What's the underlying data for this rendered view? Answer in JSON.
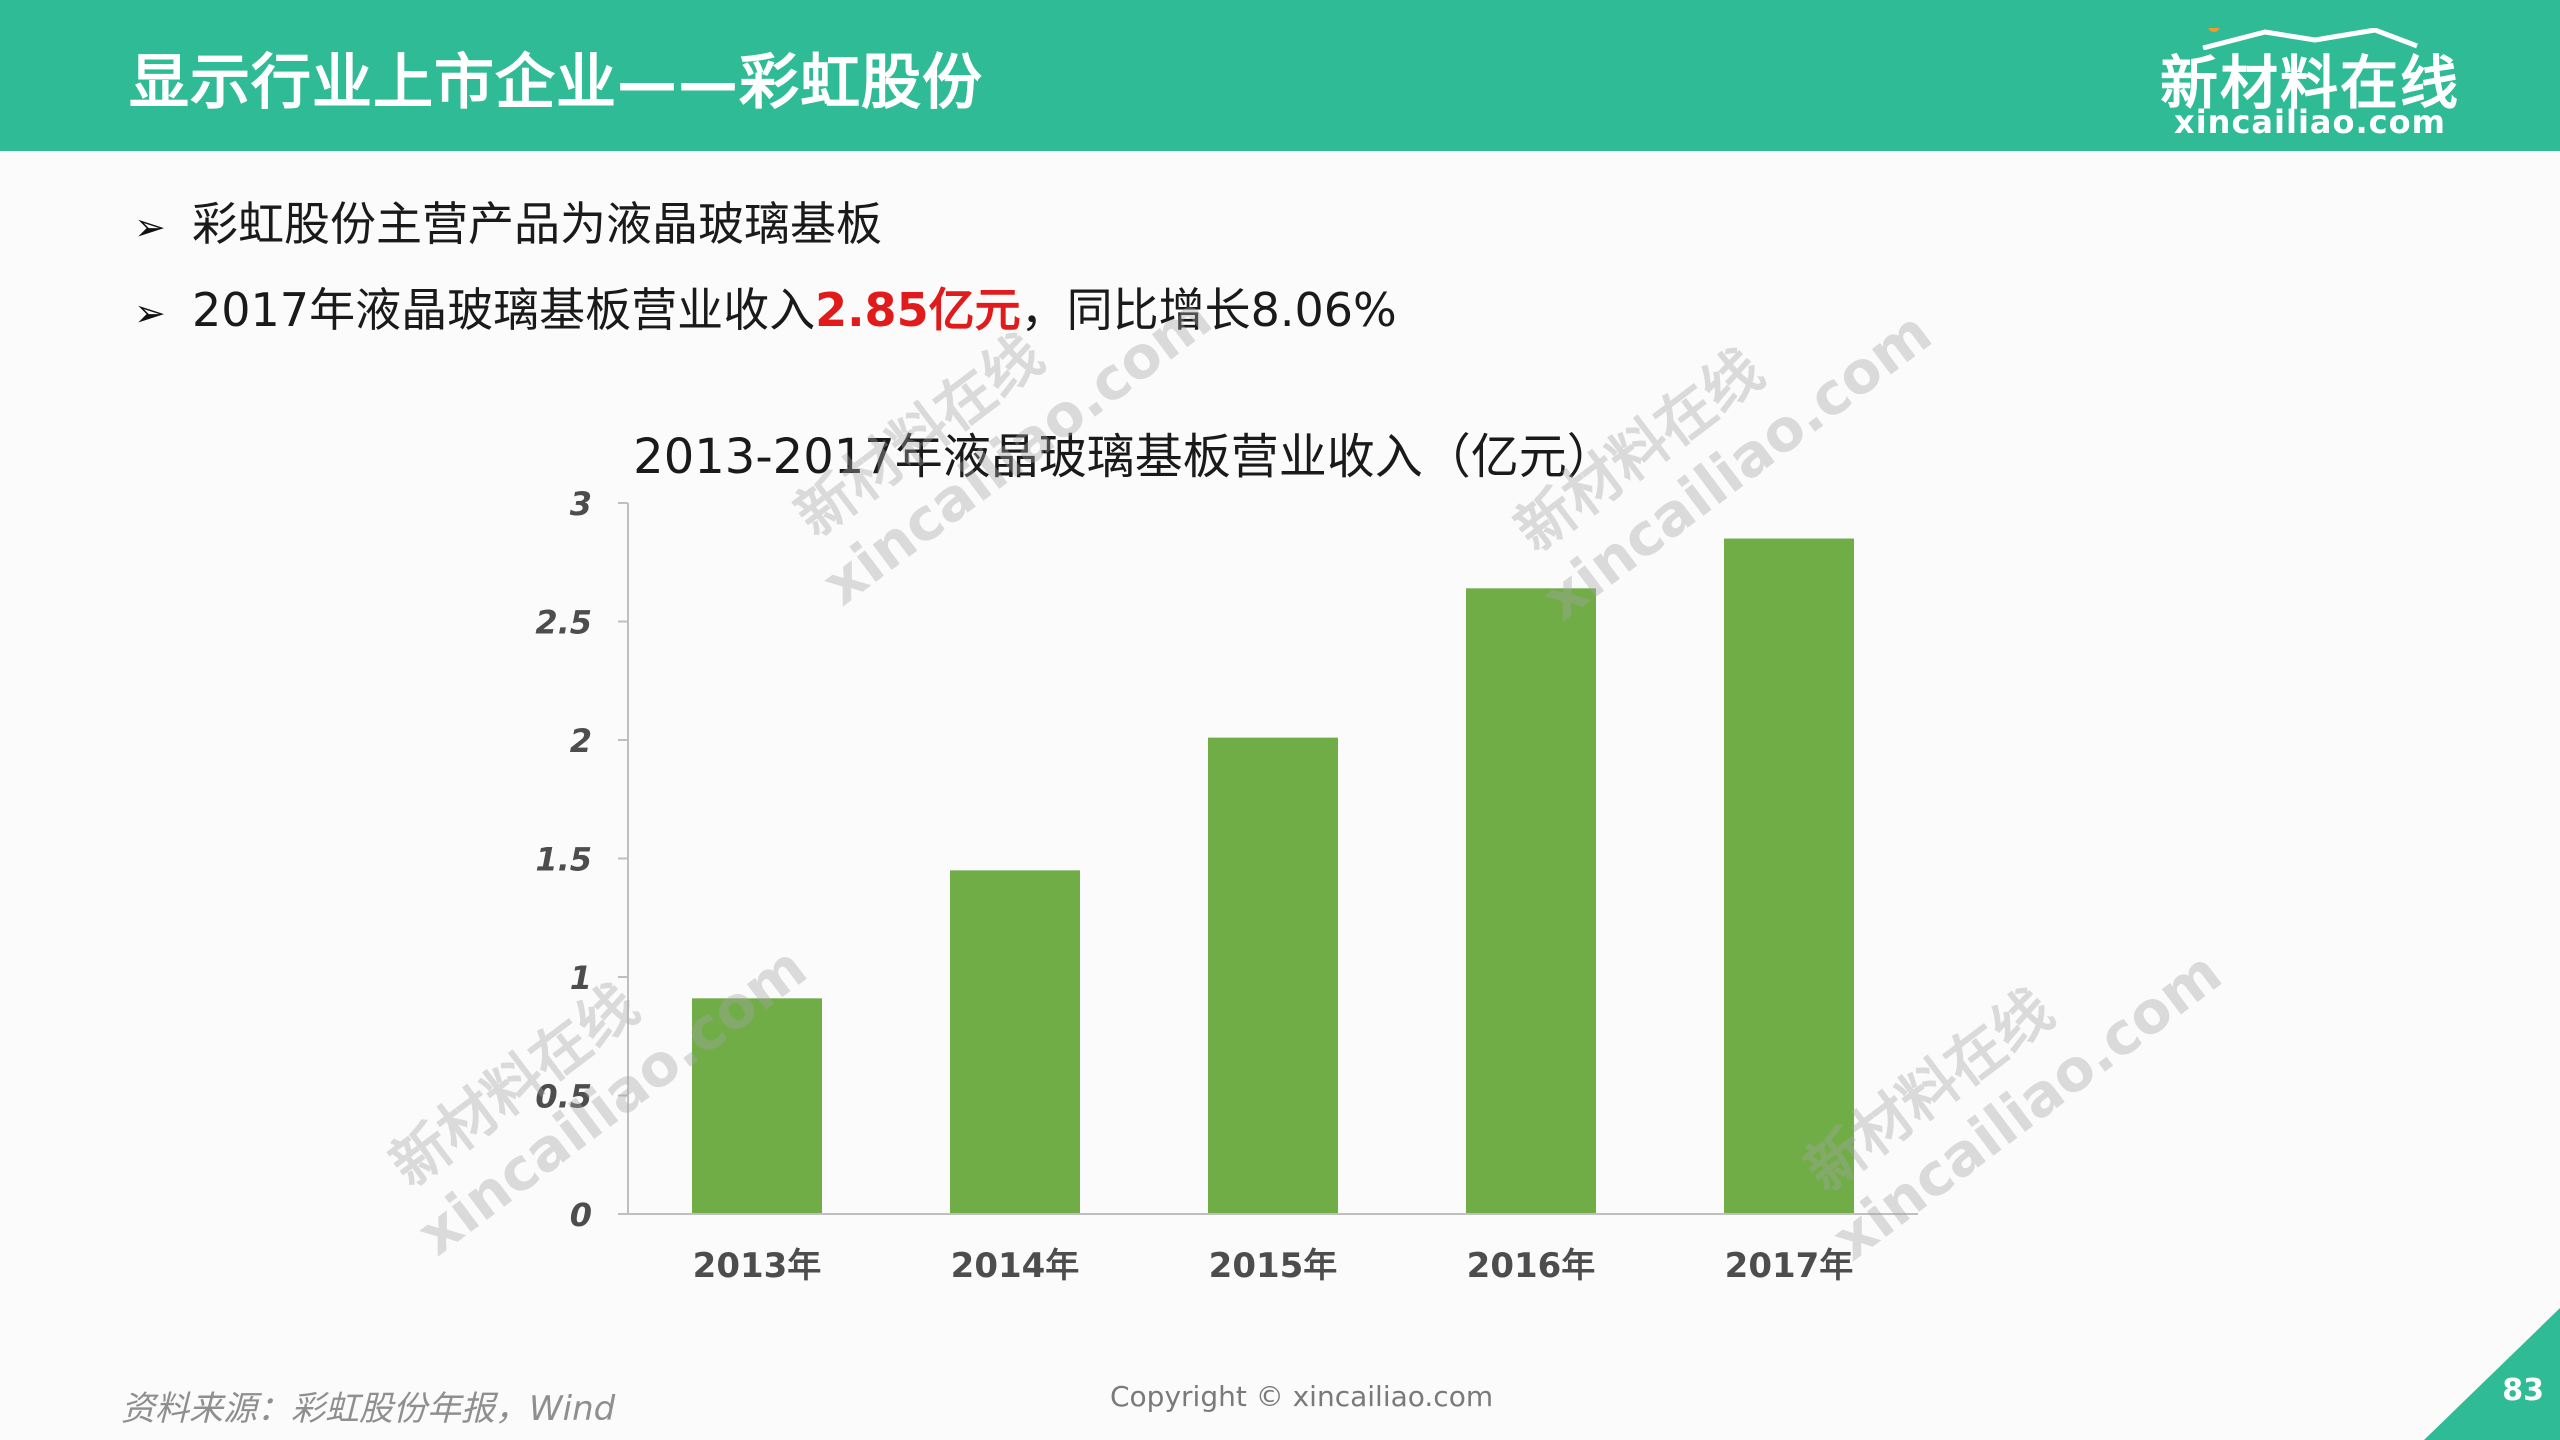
{
  "header": {
    "title": "显示行业上市企业——彩虹股份",
    "brand_cn": "新材料在线",
    "brand_en": "xincailiao.com"
  },
  "bullets": [
    {
      "marker": "➢",
      "text": "彩虹股份主营产品为液晶玻璃基板"
    },
    {
      "marker": "➢",
      "prefix": "2017年液晶玻璃基板营业收入",
      "highlight": "2.85亿元",
      "suffix": "，同比增长8.06%"
    }
  ],
  "chart_data": {
    "type": "bar",
    "title": "2013-2017年液晶玻璃基板营业收入（亿元）",
    "categories": [
      "2013年",
      "2014年",
      "2015年",
      "2016年",
      "2017年"
    ],
    "values": [
      0.91,
      1.45,
      2.01,
      2.64,
      2.85
    ],
    "ylim": [
      0,
      3
    ],
    "yticks": [
      0,
      0.5,
      1,
      1.5,
      2,
      2.5,
      3
    ],
    "ytick_labels": [
      "0",
      "0.5",
      "1",
      "1.5",
      "2",
      "2.5",
      "3"
    ],
    "xlabel": "",
    "ylabel": "",
    "bar_color": "#70ad47",
    "legend": "none",
    "grid": false
  },
  "watermark": {
    "line1": "新材料在线",
    "line2": "xincailiao.com"
  },
  "footer": {
    "source": "资料来源：彩虹股份年报，Wind",
    "copyright": "Copyright © xincailiao.com",
    "page_number": "83"
  },
  "colors": {
    "brand_green": "#2fbb95",
    "highlight_red": "#e11b1b"
  }
}
